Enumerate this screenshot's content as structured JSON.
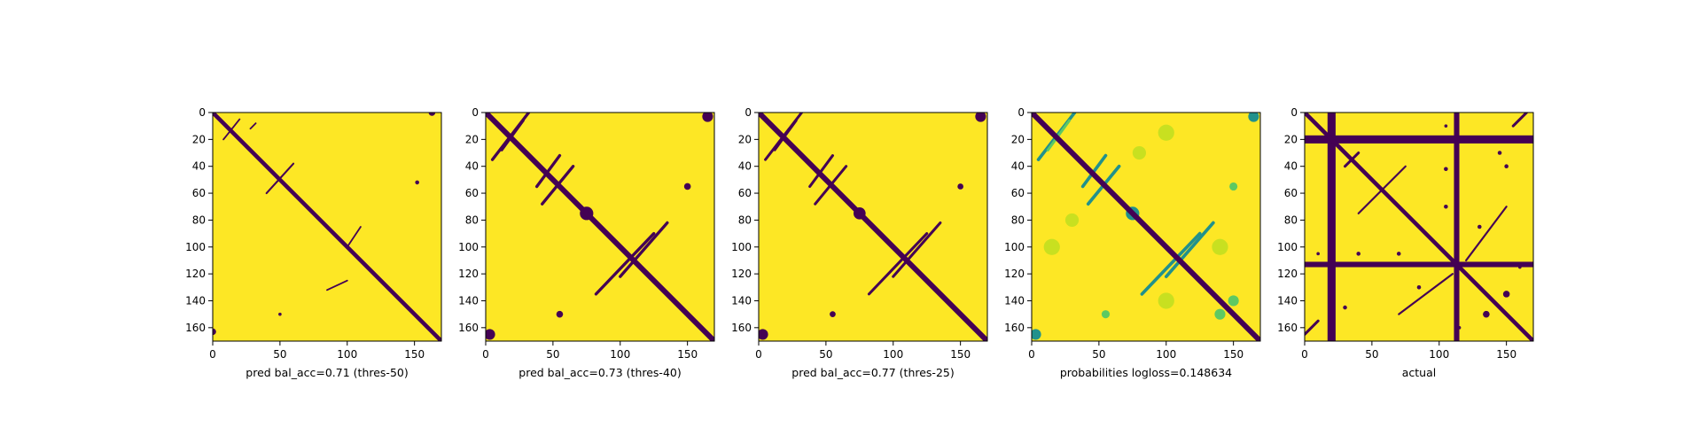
{
  "colors": {
    "background": "#fde725",
    "contact": "#440154",
    "mid": "#21918c",
    "light": "#5ec962",
    "pale": "#c8e020"
  },
  "chart_data": [
    {
      "type": "heatmap",
      "xlabel": "pred bal_acc=0.71 (thres-50)",
      "x_ticks": [
        0,
        50,
        100,
        150
      ],
      "y_ticks": [
        0,
        20,
        40,
        60,
        80,
        100,
        120,
        140,
        160
      ],
      "xlim": [
        0,
        170
      ],
      "ylim": [
        170,
        0
      ],
      "values_range": [
        0,
        1
      ],
      "diagonal_band_width": 3,
      "features": [
        {
          "kind": "line",
          "from": [
            20,
            5
          ],
          "to": [
            8,
            20
          ],
          "width": 1.2
        },
        {
          "kind": "line",
          "from": [
            32,
            8
          ],
          "to": [
            28,
            12
          ],
          "width": 1.2
        },
        {
          "kind": "line",
          "from": [
            60,
            38
          ],
          "to": [
            40,
            60
          ],
          "width": 1.4
        },
        {
          "kind": "line",
          "from": [
            110,
            85
          ],
          "to": [
            100,
            100
          ],
          "width": 1.2
        },
        {
          "kind": "line",
          "from": [
            100,
            125
          ],
          "to": [
            85,
            132
          ],
          "width": 1.2
        },
        {
          "kind": "blob",
          "center": [
            152,
            52
          ],
          "r": 1.5
        },
        {
          "kind": "blob",
          "center": [
            50,
            150
          ],
          "r": 1.2
        },
        {
          "kind": "blob",
          "center": [
            163,
            0
          ],
          "r": 2.5
        },
        {
          "kind": "blob",
          "center": [
            0,
            163
          ],
          "r": 2.5
        }
      ]
    },
    {
      "type": "heatmap",
      "xlabel": "pred bal_acc=0.73 (thres-40)",
      "x_ticks": [
        0,
        50,
        100,
        150
      ],
      "y_ticks": [
        0,
        20,
        40,
        60,
        80,
        100,
        120,
        140,
        160
      ],
      "xlim": [
        0,
        170
      ],
      "ylim": [
        170,
        0
      ],
      "values_range": [
        0,
        1
      ],
      "diagonal_band_width": 4,
      "features": [
        {
          "kind": "line",
          "from": [
            32,
            0
          ],
          "to": [
            5,
            35
          ],
          "width": 2.2
        },
        {
          "kind": "line",
          "from": [
            28,
            6
          ],
          "to": [
            12,
            28
          ],
          "width": 1.8
        },
        {
          "kind": "line",
          "from": [
            55,
            32
          ],
          "to": [
            38,
            55
          ],
          "width": 2.2
        },
        {
          "kind": "line",
          "from": [
            65,
            40
          ],
          "to": [
            42,
            68
          ],
          "width": 2.2
        },
        {
          "kind": "line",
          "from": [
            135,
            82
          ],
          "to": [
            100,
            122
          ],
          "width": 2.2
        },
        {
          "kind": "line",
          "from": [
            125,
            90
          ],
          "to": [
            82,
            135
          ],
          "width": 2.2
        },
        {
          "kind": "blob",
          "center": [
            75,
            75
          ],
          "r": 5
        },
        {
          "kind": "blob",
          "center": [
            150,
            55
          ],
          "r": 2.5
        },
        {
          "kind": "blob",
          "center": [
            55,
            150
          ],
          "r": 2.5
        },
        {
          "kind": "blob",
          "center": [
            165,
            3
          ],
          "r": 4
        },
        {
          "kind": "blob",
          "center": [
            3,
            165
          ],
          "r": 4
        }
      ]
    },
    {
      "type": "heatmap",
      "xlabel": "pred bal_acc=0.77 (thres-25)",
      "x_ticks": [
        0,
        50,
        100,
        150
      ],
      "y_ticks": [
        0,
        20,
        40,
        60,
        80,
        100,
        120,
        140,
        160
      ],
      "xlim": [
        0,
        170
      ],
      "ylim": [
        170,
        0
      ],
      "values_range": [
        0,
        1
      ],
      "diagonal_band_width": 4,
      "features": [
        {
          "kind": "line",
          "from": [
            32,
            0
          ],
          "to": [
            5,
            35
          ],
          "width": 2.0
        },
        {
          "kind": "line",
          "from": [
            28,
            6
          ],
          "to": [
            12,
            28
          ],
          "width": 1.6
        },
        {
          "kind": "line",
          "from": [
            55,
            32
          ],
          "to": [
            38,
            55
          ],
          "width": 2.0
        },
        {
          "kind": "line",
          "from": [
            65,
            40
          ],
          "to": [
            42,
            68
          ],
          "width": 2.0
        },
        {
          "kind": "line",
          "from": [
            135,
            82
          ],
          "to": [
            100,
            122
          ],
          "width": 2.0
        },
        {
          "kind": "line",
          "from": [
            125,
            90
          ],
          "to": [
            82,
            135
          ],
          "width": 2.0
        },
        {
          "kind": "blob",
          "center": [
            75,
            75
          ],
          "r": 4.5
        },
        {
          "kind": "blob",
          "center": [
            150,
            55
          ],
          "r": 2.2
        },
        {
          "kind": "blob",
          "center": [
            55,
            150
          ],
          "r": 2.2
        },
        {
          "kind": "blob",
          "center": [
            165,
            3
          ],
          "r": 4
        },
        {
          "kind": "blob",
          "center": [
            3,
            165
          ],
          "r": 4
        }
      ]
    },
    {
      "type": "heatmap",
      "xlabel": "probabilities logloss=0.148634",
      "x_ticks": [
        0,
        50,
        100,
        150
      ],
      "y_ticks": [
        0,
        20,
        40,
        60,
        80,
        100,
        120,
        140,
        160
      ],
      "xlim": [
        0,
        170
      ],
      "ylim": [
        170,
        0
      ],
      "values_range": [
        0,
        1
      ],
      "diagonal_band_width": 4,
      "features": [
        {
          "kind": "line",
          "from": [
            32,
            0
          ],
          "to": [
            5,
            35
          ],
          "width": 2.4,
          "tone": "mid"
        },
        {
          "kind": "line",
          "from": [
            28,
            6
          ],
          "to": [
            12,
            28
          ],
          "width": 2.0,
          "tone": "light"
        },
        {
          "kind": "line",
          "from": [
            55,
            32
          ],
          "to": [
            38,
            55
          ],
          "width": 2.4,
          "tone": "mid"
        },
        {
          "kind": "line",
          "from": [
            65,
            40
          ],
          "to": [
            42,
            68
          ],
          "width": 2.4,
          "tone": "mid"
        },
        {
          "kind": "line",
          "from": [
            135,
            82
          ],
          "to": [
            100,
            122
          ],
          "width": 2.4,
          "tone": "mid"
        },
        {
          "kind": "line",
          "from": [
            125,
            90
          ],
          "to": [
            82,
            135
          ],
          "width": 2.4,
          "tone": "mid"
        },
        {
          "kind": "blob",
          "center": [
            75,
            75
          ],
          "r": 5,
          "tone": "mid"
        },
        {
          "kind": "blob",
          "center": [
            150,
            55
          ],
          "r": 3,
          "tone": "light"
        },
        {
          "kind": "blob",
          "center": [
            55,
            150
          ],
          "r": 3,
          "tone": "light"
        },
        {
          "kind": "blob",
          "center": [
            165,
            3
          ],
          "r": 4,
          "tone": "mid"
        },
        {
          "kind": "blob",
          "center": [
            3,
            165
          ],
          "r": 4,
          "tone": "mid"
        },
        {
          "kind": "blob",
          "center": [
            100,
            15
          ],
          "r": 6,
          "tone": "pale"
        },
        {
          "kind": "blob",
          "center": [
            15,
            100
          ],
          "r": 6,
          "tone": "pale"
        },
        {
          "kind": "blob",
          "center": [
            140,
            100
          ],
          "r": 6,
          "tone": "pale"
        },
        {
          "kind": "blob",
          "center": [
            100,
            140
          ],
          "r": 6,
          "tone": "pale"
        },
        {
          "kind": "blob",
          "center": [
            80,
            30
          ],
          "r": 5,
          "tone": "pale"
        },
        {
          "kind": "blob",
          "center": [
            30,
            80
          ],
          "r": 5,
          "tone": "pale"
        },
        {
          "kind": "blob",
          "center": [
            150,
            140
          ],
          "r": 4,
          "tone": "light"
        },
        {
          "kind": "blob",
          "center": [
            140,
            150
          ],
          "r": 4,
          "tone": "light"
        }
      ]
    },
    {
      "type": "heatmap",
      "xlabel": "actual",
      "x_ticks": [
        0,
        50,
        100,
        150
      ],
      "y_ticks": [
        0,
        20,
        40,
        60,
        80,
        100,
        120,
        140,
        160
      ],
      "xlim": [
        0,
        170
      ],
      "ylim": [
        170,
        0
      ],
      "values_range": [
        0,
        1
      ],
      "diagonal_band_width": 3,
      "features": [
        {
          "kind": "vband",
          "x": 20,
          "width": 6
        },
        {
          "kind": "hband",
          "y": 20,
          "width": 6
        },
        {
          "kind": "vband",
          "x": 113,
          "width": 4
        },
        {
          "kind": "hband",
          "y": 113,
          "width": 4
        },
        {
          "kind": "line",
          "from": [
            165,
            0
          ],
          "to": [
            155,
            10
          ],
          "width": 2
        },
        {
          "kind": "line",
          "from": [
            0,
            165
          ],
          "to": [
            10,
            155
          ],
          "width": 2
        },
        {
          "kind": "line",
          "from": [
            40,
            30
          ],
          "to": [
            30,
            40
          ],
          "width": 2
        },
        {
          "kind": "line",
          "from": [
            75,
            40
          ],
          "to": [
            40,
            75
          ],
          "width": 1.4
        },
        {
          "kind": "line",
          "from": [
            150,
            70
          ],
          "to": [
            120,
            110
          ],
          "width": 1.4
        },
        {
          "kind": "line",
          "from": [
            110,
            120
          ],
          "to": [
            70,
            150
          ],
          "width": 1.4
        },
        {
          "kind": "blob",
          "center": [
            105,
            42
          ],
          "r": 1.5
        },
        {
          "kind": "blob",
          "center": [
            145,
            30
          ],
          "r": 1.5
        },
        {
          "kind": "blob",
          "center": [
            150,
            40
          ],
          "r": 1.5
        },
        {
          "kind": "blob",
          "center": [
            105,
            70
          ],
          "r": 1.5
        },
        {
          "kind": "blob",
          "center": [
            130,
            85
          ],
          "r": 1.5
        },
        {
          "kind": "blob",
          "center": [
            40,
            105
          ],
          "r": 1.5
        },
        {
          "kind": "blob",
          "center": [
            30,
            145
          ],
          "r": 1.5
        },
        {
          "kind": "blob",
          "center": [
            70,
            105
          ],
          "r": 1.5
        },
        {
          "kind": "blob",
          "center": [
            85,
            130
          ],
          "r": 1.5
        },
        {
          "kind": "blob",
          "center": [
            10,
            105
          ],
          "r": 1.2
        },
        {
          "kind": "blob",
          "center": [
            105,
            10
          ],
          "r": 1.2
        },
        {
          "kind": "blob",
          "center": [
            150,
            135
          ],
          "r": 2.5
        },
        {
          "kind": "blob",
          "center": [
            135,
            150
          ],
          "r": 2.5
        },
        {
          "kind": "blob",
          "center": [
            160,
            115
          ],
          "r": 1.2
        },
        {
          "kind": "blob",
          "center": [
            115,
            160
          ],
          "r": 1.2
        }
      ]
    }
  ]
}
